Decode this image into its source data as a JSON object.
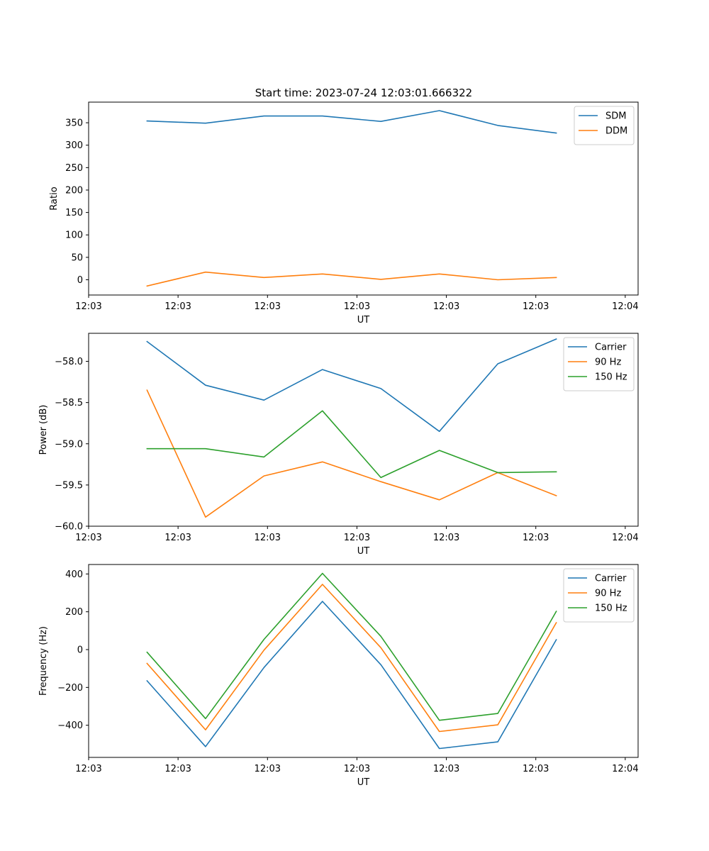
{
  "figure_title": "Start time: 2023-07-24 12:03:01.666322",
  "colors": {
    "blue": "#1f77b4",
    "orange": "#ff7f0e",
    "green": "#2ca02c"
  },
  "chart_data": [
    {
      "type": "line",
      "title": "Start time: 2023-07-24 12:03:01.666322",
      "xlabel": "UT",
      "ylabel": "Ratio",
      "x": [
        1,
        2,
        3,
        4,
        5,
        6,
        7,
        8
      ],
      "xlim": [
        0,
        9.4
      ],
      "xticks": [
        0.0,
        1.53,
        3.06,
        4.59,
        6.12,
        7.65,
        9.18
      ],
      "xtick_labels": [
        "12:03",
        "12:03",
        "12:03",
        "12:03",
        "12:03",
        "12:03",
        "12:04"
      ],
      "ylim": [
        -34,
        396
      ],
      "yticks": [
        0,
        50,
        100,
        150,
        200,
        250,
        300,
        350
      ],
      "ytick_labels": [
        "0",
        "50",
        "100",
        "150",
        "200",
        "250",
        "300",
        "350"
      ],
      "legend_position": "top-right",
      "series": [
        {
          "name": "SDM",
          "color": "#1f77b4",
          "values": [
            354,
            349,
            365,
            365,
            353,
            377,
            344,
            327
          ]
        },
        {
          "name": "DDM",
          "color": "#ff7f0e",
          "values": [
            -14,
            17,
            5,
            13,
            1,
            13,
            0,
            5
          ]
        }
      ]
    },
    {
      "type": "line",
      "title": "",
      "xlabel": "UT",
      "ylabel": "Power (dB)",
      "x": [
        1,
        2,
        3,
        4,
        5,
        6,
        7,
        8
      ],
      "xlim": [
        0,
        9.4
      ],
      "xticks": [
        0.0,
        1.53,
        3.06,
        4.59,
        6.12,
        7.65,
        9.18
      ],
      "xtick_labels": [
        "12:03",
        "12:03",
        "12:03",
        "12:03",
        "12:03",
        "12:03",
        "12:04"
      ],
      "ylim": [
        -60.0,
        -57.66
      ],
      "yticks": [
        -60.0,
        -59.5,
        -59.0,
        -58.5,
        -58.0
      ],
      "ytick_labels": [
        "−60.0",
        "−59.5",
        "−59.0",
        "−58.5",
        "−58.0"
      ],
      "legend_position": "top-right",
      "series": [
        {
          "name": "Carrier",
          "color": "#1f77b4",
          "values": [
            -57.76,
            -58.29,
            -58.47,
            -58.1,
            -58.33,
            -58.85,
            -58.03,
            -57.73
          ]
        },
        {
          "name": "90 Hz",
          "color": "#ff7f0e",
          "values": [
            -58.35,
            -59.89,
            -59.39,
            -59.22,
            -59.46,
            -59.68,
            -59.35,
            -59.63
          ]
        },
        {
          "name": "150 Hz",
          "color": "#2ca02c",
          "values": [
            -59.06,
            -59.06,
            -59.16,
            -58.6,
            -59.41,
            -59.08,
            -59.35,
            -59.34
          ]
        }
      ]
    },
    {
      "type": "line",
      "title": "",
      "xlabel": "UT",
      "ylabel": "Frequency (Hz)",
      "x": [
        1,
        2,
        3,
        4,
        5,
        6,
        7,
        8
      ],
      "xlim": [
        0,
        9.4
      ],
      "xticks": [
        0.0,
        1.53,
        3.06,
        4.59,
        6.12,
        7.65,
        9.18
      ],
      "xtick_labels": [
        "12:03",
        "12:03",
        "12:03",
        "12:03",
        "12:03",
        "12:03",
        "12:04"
      ],
      "ylim": [
        -570,
        450
      ],
      "yticks": [
        -400,
        -200,
        0,
        200,
        400
      ],
      "ytick_labels": [
        "−400",
        "−200",
        "0",
        "200",
        "400"
      ],
      "legend_position": "top-right",
      "series": [
        {
          "name": "Carrier",
          "color": "#1f77b4",
          "values": [
            -165,
            -513,
            -95,
            255,
            -80,
            -523,
            -488,
            52
          ]
        },
        {
          "name": "90 Hz",
          "color": "#ff7f0e",
          "values": [
            -73,
            -424,
            -3,
            345,
            10,
            -433,
            -398,
            142
          ]
        },
        {
          "name": "150 Hz",
          "color": "#2ca02c",
          "values": [
            -14,
            -365,
            54,
            403,
            70,
            -374,
            -338,
            202
          ]
        }
      ]
    }
  ]
}
